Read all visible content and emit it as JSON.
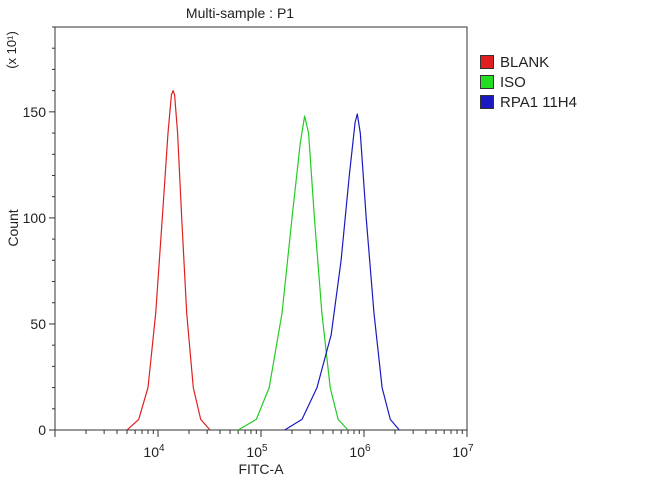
{
  "chart_data": {
    "type": "line",
    "title": "Multi-sample : P1",
    "xlabel": "FITC-A",
    "ylabel": "Count",
    "y_multiplier_label": "(x 10¹)",
    "x_scale": "log",
    "xlim": [
      1000,
      10000000
    ],
    "ylim": [
      0,
      190
    ],
    "x_ticks": [
      {
        "value": 10000,
        "base": "10",
        "exp": "4"
      },
      {
        "value": 100000,
        "base": "10",
        "exp": "5"
      },
      {
        "value": 1000000,
        "base": "10",
        "exp": "6"
      },
      {
        "value": 10000000,
        "base": "10",
        "exp": "7"
      }
    ],
    "y_ticks": [
      0,
      50,
      100,
      150
    ],
    "legend_position": "right",
    "series": [
      {
        "name": "BLANK",
        "color": "#e02020",
        "x": [
          5000,
          6500,
          8000,
          9500,
          11000,
          12500,
          13500,
          14000,
          14500,
          15500,
          17000,
          19000,
          22000,
          26000,
          32000
        ],
        "y": [
          0,
          5,
          20,
          55,
          100,
          140,
          158,
          160,
          158,
          140,
          100,
          55,
          20,
          5,
          0
        ]
      },
      {
        "name": "ISO",
        "color": "#22cc22",
        "x": [
          60000,
          90000,
          120000,
          160000,
          200000,
          240000,
          265000,
          290000,
          330000,
          390000,
          470000,
          560000,
          700000
        ],
        "y": [
          0,
          5,
          20,
          55,
          100,
          135,
          148,
          140,
          100,
          55,
          20,
          5,
          0
        ]
      },
      {
        "name": "RPA1 11H4",
        "color": "#1a1ac0",
        "x": [
          170000,
          250000,
          350000,
          480000,
          600000,
          720000,
          820000,
          860000,
          920000,
          1050000,
          1250000,
          1500000,
          1800000,
          2200000
        ],
        "y": [
          0,
          5,
          20,
          45,
          80,
          120,
          145,
          149,
          140,
          100,
          55,
          20,
          5,
          0
        ]
      }
    ]
  }
}
